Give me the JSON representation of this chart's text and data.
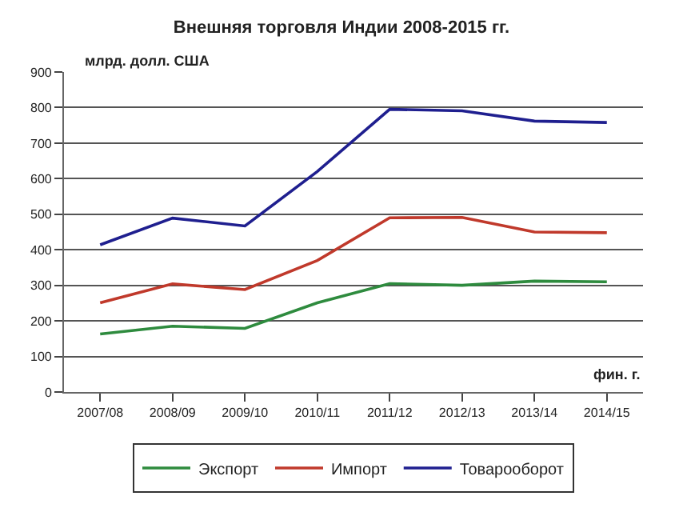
{
  "chart_data": {
    "type": "line",
    "title": "Внешняя торговля Индии 2008-2015 гг.",
    "ylabel": "млрд. долл. США",
    "xlabel": "фин. г.",
    "categories": [
      "2007/08",
      "2008/09",
      "2009/10",
      "2010/11",
      "2011/12",
      "2012/13",
      "2013/14",
      "2014/15"
    ],
    "series": [
      {
        "name": "Экспорт",
        "color": "#2e8b3e",
        "values": [
          163,
          185,
          179,
          251,
          305,
          300,
          312,
          310
        ]
      },
      {
        "name": "Импорт",
        "color": "#c0392b",
        "values": [
          251,
          304,
          288,
          370,
          490,
          491,
          450,
          448
        ]
      },
      {
        "name": "Товарооборот",
        "color": "#1f1f8f",
        "values": [
          414,
          489,
          467,
          620,
          795,
          791,
          762,
          758
        ]
      }
    ],
    "ylim": [
      0,
      900
    ],
    "yticks": [
      0,
      100,
      200,
      300,
      400,
      500,
      600,
      700,
      800,
      900
    ],
    "grid": "y",
    "legend": "bottom",
    "marker": "none",
    "line_style": "solid"
  }
}
